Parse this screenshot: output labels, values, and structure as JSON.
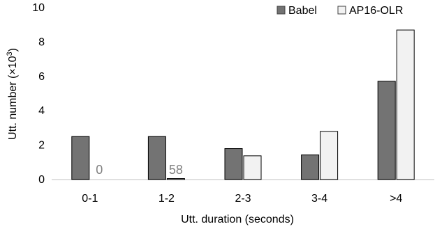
{
  "chart_data": {
    "type": "bar",
    "title": "",
    "xlabel": "Utt. duration (seconds)",
    "ylabel_main": "Utt. number (×10",
    "ylabel_sup": "3",
    "ylabel_close": ")",
    "ylim": [
      0,
      10
    ],
    "yticks": [
      "0",
      "2",
      "4",
      "6",
      "8",
      "10"
    ],
    "grid": false,
    "legend_position": "top-right",
    "categories": [
      "0-1",
      "1-2",
      "2-3",
      "3-4",
      ">4"
    ],
    "series": [
      {
        "name": "Babel",
        "color": "#737373",
        "values": [
          2.5,
          2.5,
          1.8,
          1.43,
          5.72
        ]
      },
      {
        "name": "AP16-OLR",
        "color": "#f2f2f2",
        "values": [
          0,
          0.058,
          1.38,
          2.8,
          8.7
        ]
      }
    ],
    "annotations": [
      {
        "category_index": 0,
        "series": "AP16-OLR",
        "text": "0"
      },
      {
        "category_index": 1,
        "series": "AP16-OLR",
        "text": "58"
      }
    ]
  }
}
